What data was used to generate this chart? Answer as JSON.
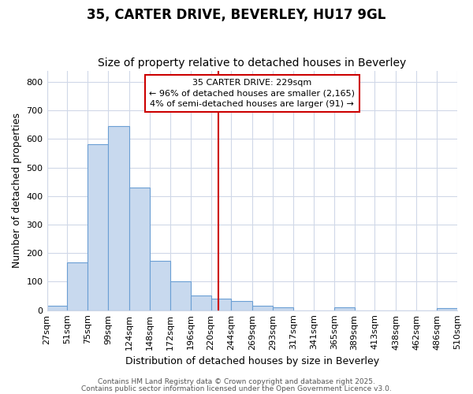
{
  "title": "35, CARTER DRIVE, BEVERLEY, HU17 9GL",
  "subtitle": "Size of property relative to detached houses in Beverley",
  "xlabel": "Distribution of detached houses by size in Beverley",
  "ylabel": "Number of detached properties",
  "bar_color": "#c8d9ee",
  "bar_edge_color": "#6b9fd4",
  "background_color": "#ffffff",
  "grid_color": "#d0d8e8",
  "vline_color": "#cc0000",
  "vline_x": 229,
  "bin_edges": [
    27,
    51,
    75,
    99,
    124,
    148,
    172,
    196,
    220,
    244,
    269,
    293,
    317,
    341,
    365,
    389,
    413,
    438,
    462,
    486,
    510
  ],
  "bar_heights": [
    17,
    167,
    581,
    645,
    430,
    172,
    101,
    52,
    40,
    33,
    15,
    10,
    0,
    0,
    10,
    0,
    0,
    0,
    0,
    7
  ],
  "ylim": [
    0,
    840
  ],
  "yticks": [
    0,
    100,
    200,
    300,
    400,
    500,
    600,
    700,
    800
  ],
  "annotation_line1": "35 CARTER DRIVE: 229sqm",
  "annotation_line2": "← 96% of detached houses are smaller (2,165)",
  "annotation_line3": "4% of semi-detached houses are larger (91) →",
  "annotation_box_color": "#ffffff",
  "annotation_border_color": "#cc0000",
  "footer_line1": "Contains HM Land Registry data © Crown copyright and database right 2025.",
  "footer_line2": "Contains public sector information licensed under the Open Government Licence v3.0.",
  "title_fontsize": 12,
  "subtitle_fontsize": 10,
  "tick_fontsize": 8,
  "ylabel_fontsize": 9,
  "xlabel_fontsize": 9,
  "footer_fontsize": 6.5
}
